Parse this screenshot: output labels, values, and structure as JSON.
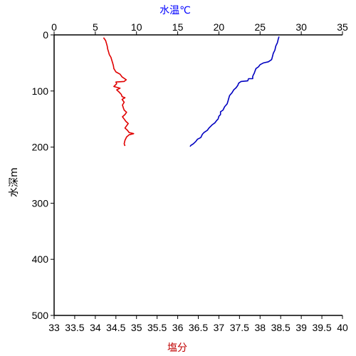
{
  "chart_data": {
    "type": "line",
    "title": "",
    "top_axis": {
      "label": "水温℃",
      "label_color": "#0000ff",
      "ticks": [
        "0",
        "5",
        "10",
        "15",
        "20",
        "25",
        "30",
        "35"
      ],
      "range": [
        0,
        35
      ]
    },
    "bottom_axis": {
      "label": "塩分",
      "label_color": "#c00000",
      "ticks": [
        "33",
        "33.5",
        "34",
        "34.5",
        "35",
        "35.5",
        "36",
        "36.5",
        "37",
        "37.5",
        "38",
        "38.5",
        "39",
        "39.5",
        "40"
      ],
      "range": [
        33,
        40
      ]
    },
    "left_axis": {
      "label": "水深m",
      "ticks": [
        "0",
        "100",
        "200",
        "300",
        "400",
        "500"
      ],
      "range": [
        0,
        500
      ],
      "inverted": true
    },
    "grid": false,
    "series": [
      {
        "color": "#0000c0",
        "x_axis": "top",
        "points": [
          [
            27.3,
            3
          ],
          [
            27.2,
            8
          ],
          [
            27.1,
            14
          ],
          [
            26.9,
            20
          ],
          [
            26.8,
            27
          ],
          [
            26.6,
            33
          ],
          [
            26.5,
            39
          ],
          [
            26.4,
            44
          ],
          [
            26.0,
            48
          ],
          [
            25.4,
            50
          ],
          [
            25.0,
            53
          ],
          [
            24.8,
            57
          ],
          [
            24.5,
            60
          ],
          [
            24.4,
            64
          ],
          [
            24.3,
            68
          ],
          [
            24.2,
            71
          ],
          [
            24.1,
            74
          ],
          [
            24.1,
            78
          ],
          [
            23.6,
            78
          ],
          [
            23.5,
            82
          ],
          [
            22.7,
            83
          ],
          [
            22.4,
            86
          ],
          [
            22.3,
            90
          ],
          [
            22.1,
            94
          ],
          [
            21.8,
            98
          ],
          [
            21.6,
            103
          ],
          [
            21.3,
            108
          ],
          [
            21.2,
            113
          ],
          [
            21.1,
            118
          ],
          [
            21.0,
            123
          ],
          [
            20.7,
            128
          ],
          [
            20.5,
            134
          ],
          [
            20.2,
            137
          ],
          [
            20.2,
            142
          ],
          [
            20.0,
            145
          ],
          [
            19.9,
            150
          ],
          [
            19.7,
            153
          ],
          [
            19.5,
            157
          ],
          [
            19.2,
            160
          ],
          [
            19.0,
            163
          ],
          [
            18.8,
            166
          ],
          [
            18.6,
            170
          ],
          [
            18.2,
            174
          ],
          [
            18.0,
            177
          ],
          [
            17.8,
            183
          ],
          [
            17.4,
            186
          ],
          [
            17.2,
            190
          ],
          [
            16.9,
            194
          ],
          [
            16.6,
            197
          ],
          [
            16.5,
            199
          ]
        ]
      },
      {
        "color": "#e00000",
        "x_axis": "bottom",
        "points": [
          [
            34.2,
            5
          ],
          [
            34.25,
            10
          ],
          [
            34.27,
            15
          ],
          [
            34.29,
            20
          ],
          [
            34.3,
            25
          ],
          [
            34.32,
            30
          ],
          [
            34.34,
            35
          ],
          [
            34.38,
            40
          ],
          [
            34.4,
            45
          ],
          [
            34.42,
            50
          ],
          [
            34.44,
            55
          ],
          [
            34.45,
            60
          ],
          [
            34.5,
            66
          ],
          [
            34.6,
            70
          ],
          [
            34.65,
            75
          ],
          [
            34.75,
            80
          ],
          [
            34.7,
            83
          ],
          [
            34.5,
            84
          ],
          [
            34.52,
            87
          ],
          [
            34.45,
            92
          ],
          [
            34.6,
            95
          ],
          [
            34.52,
            98
          ],
          [
            34.58,
            102
          ],
          [
            34.63,
            106
          ],
          [
            34.65,
            110
          ],
          [
            34.72,
            112
          ],
          [
            34.65,
            115
          ],
          [
            34.7,
            120
          ],
          [
            34.66,
            125
          ],
          [
            34.68,
            130
          ],
          [
            34.7,
            134
          ],
          [
            34.76,
            138
          ],
          [
            34.72,
            142
          ],
          [
            34.66,
            146
          ],
          [
            34.7,
            150
          ],
          [
            34.74,
            154
          ],
          [
            34.8,
            158
          ],
          [
            34.76,
            162
          ],
          [
            34.72,
            166
          ],
          [
            34.78,
            170
          ],
          [
            34.82,
            174
          ],
          [
            34.93,
            176
          ],
          [
            34.82,
            178
          ],
          [
            34.76,
            182
          ],
          [
            34.72,
            188
          ],
          [
            34.7,
            194
          ],
          [
            34.72,
            198
          ]
        ]
      }
    ]
  }
}
